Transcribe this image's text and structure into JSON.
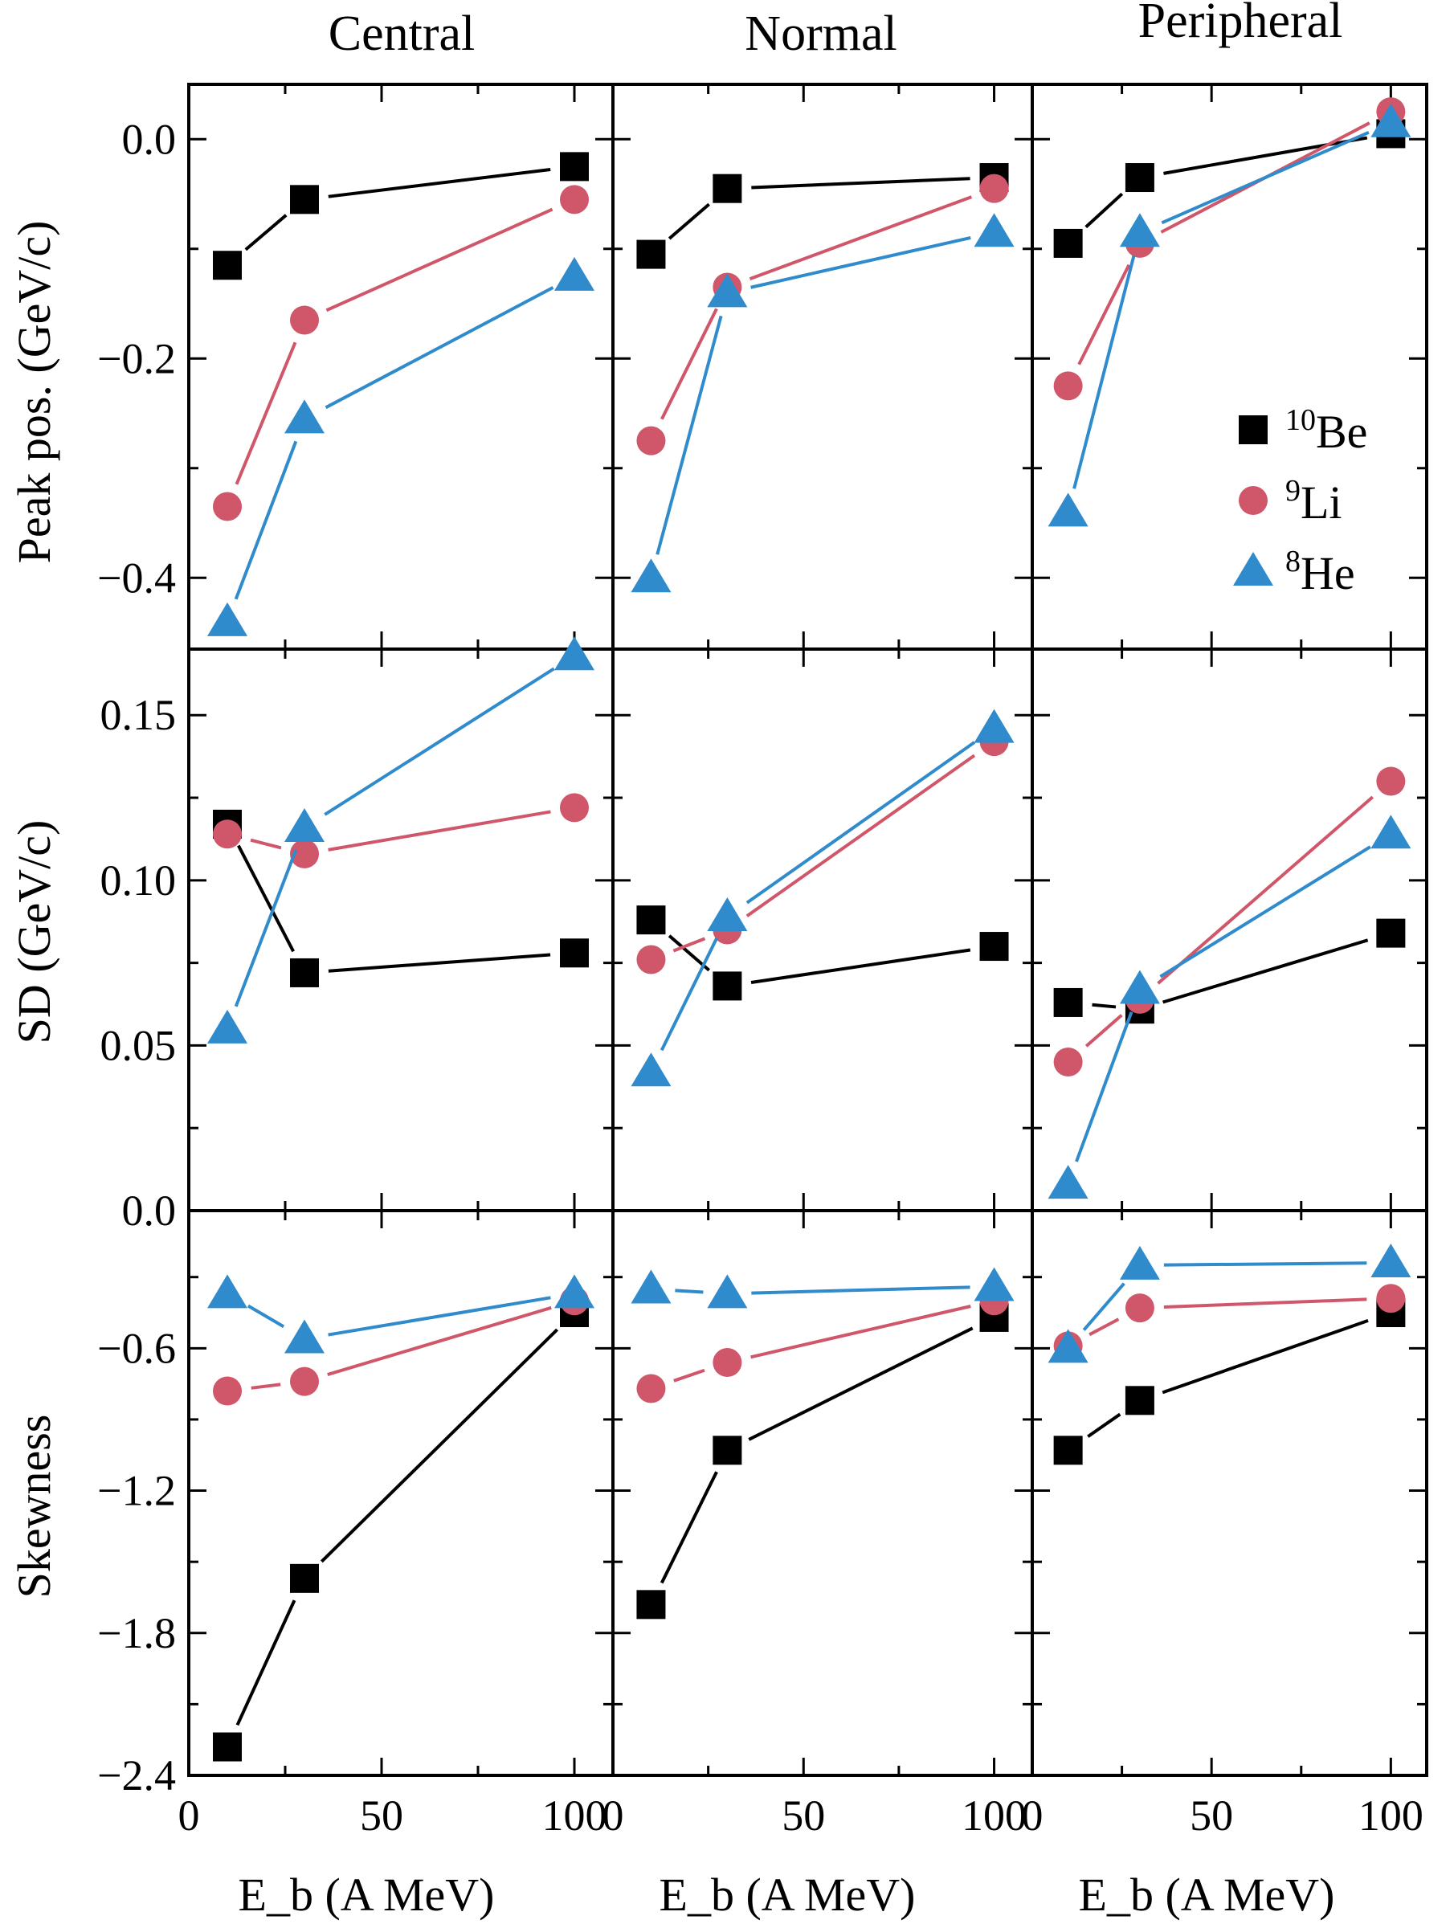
{
  "figure": {
    "columns": [
      "Central",
      "Normal",
      "Peripheral"
    ],
    "x_label": "E_b (A MeV)",
    "y_labels": [
      "Peak pos. (GeV/c)",
      "SD (GeV/c)",
      "Skewness"
    ]
  },
  "legend": {
    "entries": [
      {
        "mass": "10",
        "element": "Be",
        "color": "#000000",
        "marker": "square"
      },
      {
        "mass": "9",
        "element": "Li",
        "color": "#d0566a",
        "marker": "circle"
      },
      {
        "mass": "8",
        "element": "He",
        "color": "#2f8bcc",
        "marker": "triangle"
      }
    ]
  },
  "chart_data": {
    "type": "line",
    "x": [
      10,
      30,
      100
    ],
    "xlim": [
      0,
      110
    ],
    "xticks": [
      0,
      50,
      100
    ],
    "x_tick_labels": [
      "0",
      "50",
      "100"
    ],
    "rows": [
      {
        "quantity": "Peak pos.",
        "ylim": [
          -0.465,
          0.05
        ],
        "yticks": [
          -0.4,
          -0.2,
          0.0
        ],
        "y_tick_labels": [
          "−0.4",
          "−0.2",
          "0.0"
        ],
        "minor_yticks": [
          -0.3,
          -0.1
        ],
        "panels": [
          {
            "column": "Central",
            "series": [
              {
                "name": "10Be",
                "values": [
                  -0.115,
                  -0.055,
                  -0.025
                ]
              },
              {
                "name": "9Li",
                "values": [
                  -0.335,
                  -0.165,
                  -0.055
                ]
              },
              {
                "name": "8He",
                "values": [
                  -0.44,
                  -0.255,
                  -0.125
                ]
              }
            ]
          },
          {
            "column": "Normal",
            "series": [
              {
                "name": "10Be",
                "values": [
                  -0.105,
                  -0.045,
                  -0.035
                ]
              },
              {
                "name": "9Li",
                "values": [
                  -0.275,
                  -0.135,
                  -0.045
                ]
              },
              {
                "name": "8He",
                "values": [
                  -0.4,
                  -0.14,
                  -0.085
                ]
              }
            ]
          },
          {
            "column": "Peripheral",
            "series": [
              {
                "name": "10Be",
                "values": [
                  -0.095,
                  -0.035,
                  0.005
                ]
              },
              {
                "name": "9Li",
                "values": [
                  -0.225,
                  -0.095,
                  0.025
                ]
              },
              {
                "name": "8He",
                "values": [
                  -0.34,
                  -0.085,
                  0.015
                ]
              }
            ]
          }
        ]
      },
      {
        "quantity": "SD",
        "ylim": [
          0.0,
          0.17
        ],
        "yticks": [
          0.0,
          0.05,
          0.1,
          0.15
        ],
        "y_tick_labels": [
          "0.0",
          "0.05",
          "0.10",
          "0.15"
        ],
        "minor_yticks": [
          0.025,
          0.075,
          0.125
        ],
        "panels": [
          {
            "column": "Central",
            "series": [
              {
                "name": "10Be",
                "values": [
                  0.117,
                  0.072,
                  0.078
                ]
              },
              {
                "name": "9Li",
                "values": [
                  0.114,
                  0.108,
                  0.122
                ]
              },
              {
                "name": "8He",
                "values": [
                  0.055,
                  0.116,
                  0.168
                ]
              }
            ]
          },
          {
            "column": "Normal",
            "series": [
              {
                "name": "10Be",
                "values": [
                  0.088,
                  0.068,
                  0.08
                ]
              },
              {
                "name": "9Li",
                "values": [
                  0.076,
                  0.085,
                  0.142
                ]
              },
              {
                "name": "8He",
                "values": [
                  0.042,
                  0.089,
                  0.146
                ]
              }
            ]
          },
          {
            "column": "Peripheral",
            "series": [
              {
                "name": "10Be",
                "values": [
                  0.063,
                  0.061,
                  0.084
                ]
              },
              {
                "name": "9Li",
                "values": [
                  0.045,
                  0.064,
                  0.13
                ]
              },
              {
                "name": "8He",
                "values": [
                  0.008,
                  0.067,
                  0.114
                ]
              }
            ]
          }
        ]
      },
      {
        "quantity": "Skewness",
        "ylim": [
          -2.4,
          -0.02
        ],
        "yticks": [
          -2.4,
          -1.8,
          -1.2,
          -0.6
        ],
        "y_tick_labels": [
          "−2.4",
          "−1.8",
          "−1.2",
          "−0.6"
        ],
        "minor_yticks": [
          -2.1,
          -1.5,
          -0.9,
          -0.3
        ],
        "panels": [
          {
            "column": "Central",
            "series": [
              {
                "name": "10Be",
                "values": [
                  -2.28,
                  -1.57,
                  -0.45
                ]
              },
              {
                "name": "9Li",
                "values": [
                  -0.78,
                  -0.74,
                  -0.4
                ]
              },
              {
                "name": "8He",
                "values": [
                  -0.37,
                  -0.56,
                  -0.37
                ]
              }
            ]
          },
          {
            "column": "Normal",
            "series": [
              {
                "name": "10Be",
                "values": [
                  -1.68,
                  -1.03,
                  -0.47
                ]
              },
              {
                "name": "9Li",
                "values": [
                  -0.77,
                  -0.66,
                  -0.4
                ]
              },
              {
                "name": "8He",
                "values": [
                  -0.35,
                  -0.37,
                  -0.34
                ]
              }
            ]
          },
          {
            "column": "Peripheral",
            "series": [
              {
                "name": "10Be",
                "values": [
                  -1.03,
                  -0.82,
                  -0.45
                ]
              },
              {
                "name": "9Li",
                "values": [
                  -0.59,
                  -0.43,
                  -0.39
                ]
              },
              {
                "name": "8He",
                "values": [
                  -0.6,
                  -0.25,
                  -0.24
                ]
              }
            ]
          }
        ]
      }
    ]
  }
}
